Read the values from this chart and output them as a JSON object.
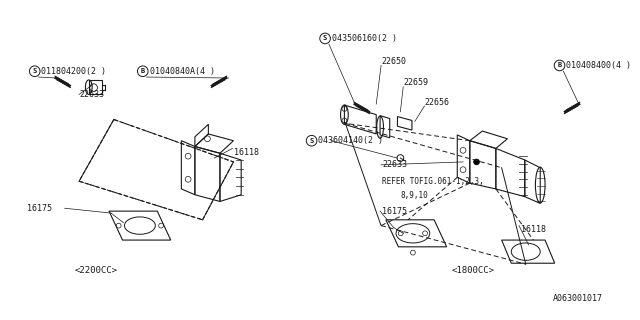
{
  "bg_color": "#ffffff",
  "line_color": "#1a1a1a",
  "fig_width": 6.4,
  "fig_height": 3.2,
  "dpi": 100,
  "diagram_label": "A063001017",
  "texts": {
    "S_left": [
      "S",
      0.053,
      0.785
    ],
    "S_left_label": [
      "011804200(2 )",
      0.067,
      0.785
    ],
    "B_left": [
      "B",
      0.218,
      0.785
    ],
    "B_left_label": [
      "01040840A(4 )",
      0.232,
      0.785
    ],
    "22633_left": [
      "22633",
      0.118,
      0.715
    ],
    "16118_left": [
      "16118",
      0.268,
      0.505
    ],
    "16175_left": [
      "16175",
      0.042,
      0.42
    ],
    "2200cc": [
      "<2200CC>",
      0.155,
      0.155
    ],
    "S_right_top": [
      "S",
      0.358,
      0.895
    ],
    "S_right_top_label": [
      "043506160(2 )",
      0.372,
      0.895
    ],
    "22650": [
      "22650",
      0.455,
      0.825
    ],
    "22659": [
      "22659",
      0.49,
      0.76
    ],
    "22656": [
      "22656",
      0.524,
      0.7
    ],
    "B_right": [
      "B",
      0.728,
      0.795
    ],
    "B_right_label": [
      "010408400(4 )",
      0.742,
      0.795
    ],
    "S_right_mid": [
      "S",
      0.318,
      0.565
    ],
    "S_right_mid_label": [
      "043604140(2 )",
      0.332,
      0.565
    ],
    "22633_right": [
      "22633",
      0.398,
      0.49
    ],
    "refer1": [
      "REFER TOFIG.061-1,2,3,",
      0.395,
      0.435
    ],
    "refer2": [
      "8,9,10",
      0.418,
      0.39
    ],
    "16175_right": [
      "16175",
      0.398,
      0.33
    ],
    "16118_right": [
      "16118",
      0.555,
      0.265
    ],
    "1800cc": [
      "<1800CC>",
      0.565,
      0.155
    ]
  }
}
